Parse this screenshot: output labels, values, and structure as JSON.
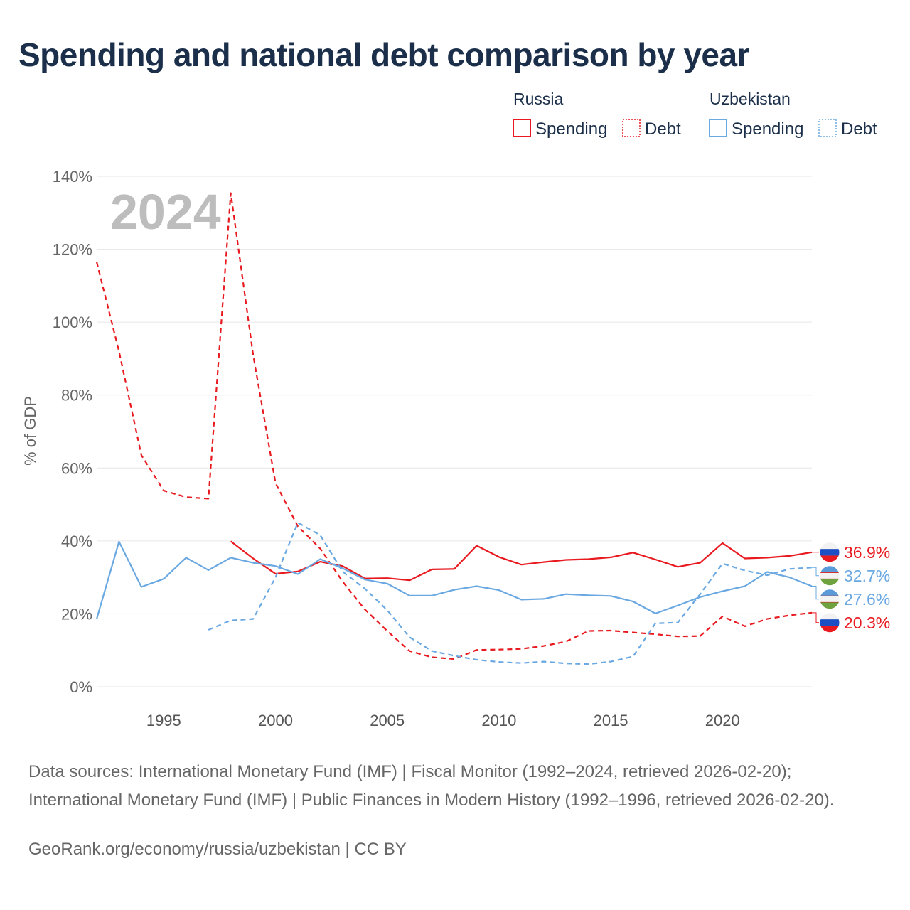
{
  "title": "Spending and national debt comparison by year",
  "year_watermark": "2024",
  "sources": "Data sources: International Monetary Fund (IMF) | Fiscal Monitor (1992–2024, retrieved 2026-02-20); International Monetary Fund (IMF) | Public Finances in Modern History (1992–1996, retrieved 2026-02-20).",
  "credit": "GeoRank.org/economy/russia/uzbekistan | CC BY",
  "legend": {
    "groups": [
      {
        "country": "Russia",
        "color": "#e8191f",
        "items": [
          {
            "label": "Spending",
            "style": "solid"
          },
          {
            "label": "Debt",
            "style": "dotted"
          }
        ]
      },
      {
        "country": "Uzbekistan",
        "color": "#6aa8e2",
        "items": [
          {
            "label": "Spending",
            "style": "solid"
          },
          {
            "label": "Debt",
            "style": "dotted"
          }
        ]
      }
    ]
  },
  "chart_data": {
    "type": "line",
    "title": "Spending and national debt comparison by year",
    "xlabel": "",
    "ylabel": "% of GDP",
    "xlim": [
      1992,
      2024
    ],
    "ylim": [
      0,
      140
    ],
    "y_ticks": [
      0,
      20,
      40,
      60,
      80,
      100,
      120,
      140
    ],
    "y_tick_labels": [
      "0%",
      "20%",
      "40%",
      "60%",
      "80%",
      "100%",
      "120%",
      "140%"
    ],
    "x_ticks": [
      1995,
      2000,
      2005,
      2010,
      2015,
      2020
    ],
    "x_tick_labels": [
      "1995",
      "2000",
      "2005",
      "2010",
      "2015",
      "2020"
    ],
    "grid": true,
    "legend_position": "top-right",
    "series": [
      {
        "name": "Russia Spending",
        "country": "Russia",
        "metric": "Spending",
        "color": "#e8191f",
        "dash": "solid",
        "flag": "russia",
        "end_label": "36.9%",
        "x": [
          1998,
          1999,
          2000,
          2001,
          2002,
          2003,
          2004,
          2005,
          2006,
          2007,
          2008,
          2009,
          2010,
          2011,
          2012,
          2013,
          2014,
          2015,
          2016,
          2017,
          2018,
          2019,
          2020,
          2021,
          2022,
          2023,
          2024
        ],
        "values": [
          39.9,
          35.2,
          31.0,
          31.6,
          34.3,
          33.1,
          29.7,
          29.8,
          29.2,
          32.2,
          32.3,
          38.7,
          35.6,
          33.5,
          34.2,
          34.8,
          35.0,
          35.5,
          36.8,
          34.9,
          32.9,
          34.0,
          39.4,
          35.2,
          35.4,
          35.9,
          36.9
        ]
      },
      {
        "name": "Russia Debt",
        "country": "Russia",
        "metric": "Debt",
        "color": "#e8191f",
        "dash": "dashed",
        "flag": "russia",
        "end_label": "20.3%",
        "x": [
          1992,
          1993,
          1994,
          1995,
          1996,
          1997,
          1998,
          1999,
          2000,
          2001,
          2002,
          2003,
          2004,
          2005,
          2006,
          2007,
          2008,
          2009,
          2010,
          2011,
          2012,
          2013,
          2014,
          2015,
          2016,
          2017,
          2018,
          2019,
          2020,
          2021,
          2022,
          2023,
          2024
        ],
        "values": [
          116.5,
          92.0,
          63.5,
          53.8,
          52.0,
          51.6,
          135.4,
          91.0,
          55.9,
          44.0,
          37.9,
          28.9,
          21.2,
          15.3,
          9.8,
          8.1,
          7.6,
          10.1,
          10.2,
          10.4,
          11.2,
          12.4,
          15.3,
          15.4,
          14.9,
          14.4,
          13.8,
          13.9,
          19.3,
          16.6,
          18.6,
          19.6,
          20.3
        ]
      },
      {
        "name": "Uzbekistan Spending",
        "country": "Uzbekistan",
        "metric": "Spending",
        "color": "#6aa8e2",
        "dash": "solid",
        "flag": "uzbekistan",
        "end_label": "27.6%",
        "x": [
          1992,
          1993,
          1994,
          1995,
          1996,
          1997,
          1998,
          1999,
          2000,
          2001,
          2002,
          2003,
          2004,
          2005,
          2006,
          2007,
          2008,
          2009,
          2010,
          2011,
          2012,
          2013,
          2014,
          2015,
          2016,
          2017,
          2018,
          2019,
          2020,
          2021,
          2022,
          2023,
          2024
        ],
        "values": [
          18.6,
          39.8,
          27.4,
          29.6,
          35.4,
          32.0,
          35.4,
          34.0,
          33.1,
          30.9,
          35.0,
          32.5,
          29.4,
          28.3,
          25.0,
          25.0,
          26.6,
          27.6,
          26.5,
          23.9,
          24.1,
          25.4,
          25.1,
          24.9,
          23.4,
          20.1,
          22.3,
          24.6,
          26.2,
          27.6,
          31.5,
          30.0,
          27.6
        ]
      },
      {
        "name": "Uzbekistan Debt",
        "country": "Uzbekistan",
        "metric": "Debt",
        "color": "#6aa8e2",
        "dash": "dashed",
        "flag": "uzbekistan",
        "end_label": "32.7%",
        "x": [
          1997,
          1998,
          1999,
          2000,
          2001,
          2002,
          2003,
          2004,
          2005,
          2006,
          2007,
          2008,
          2009,
          2010,
          2011,
          2012,
          2013,
          2014,
          2015,
          2016,
          2017,
          2018,
          2019,
          2020,
          2021,
          2022,
          2023,
          2024
        ],
        "values": [
          15.6,
          18.2,
          18.6,
          30.0,
          45.0,
          41.6,
          31.6,
          26.9,
          21.0,
          13.6,
          9.8,
          8.5,
          7.4,
          6.8,
          6.5,
          6.9,
          6.4,
          6.2,
          6.9,
          8.3,
          17.4,
          17.6,
          25.4,
          33.8,
          31.9,
          30.6,
          32.3,
          32.7
        ]
      }
    ]
  }
}
